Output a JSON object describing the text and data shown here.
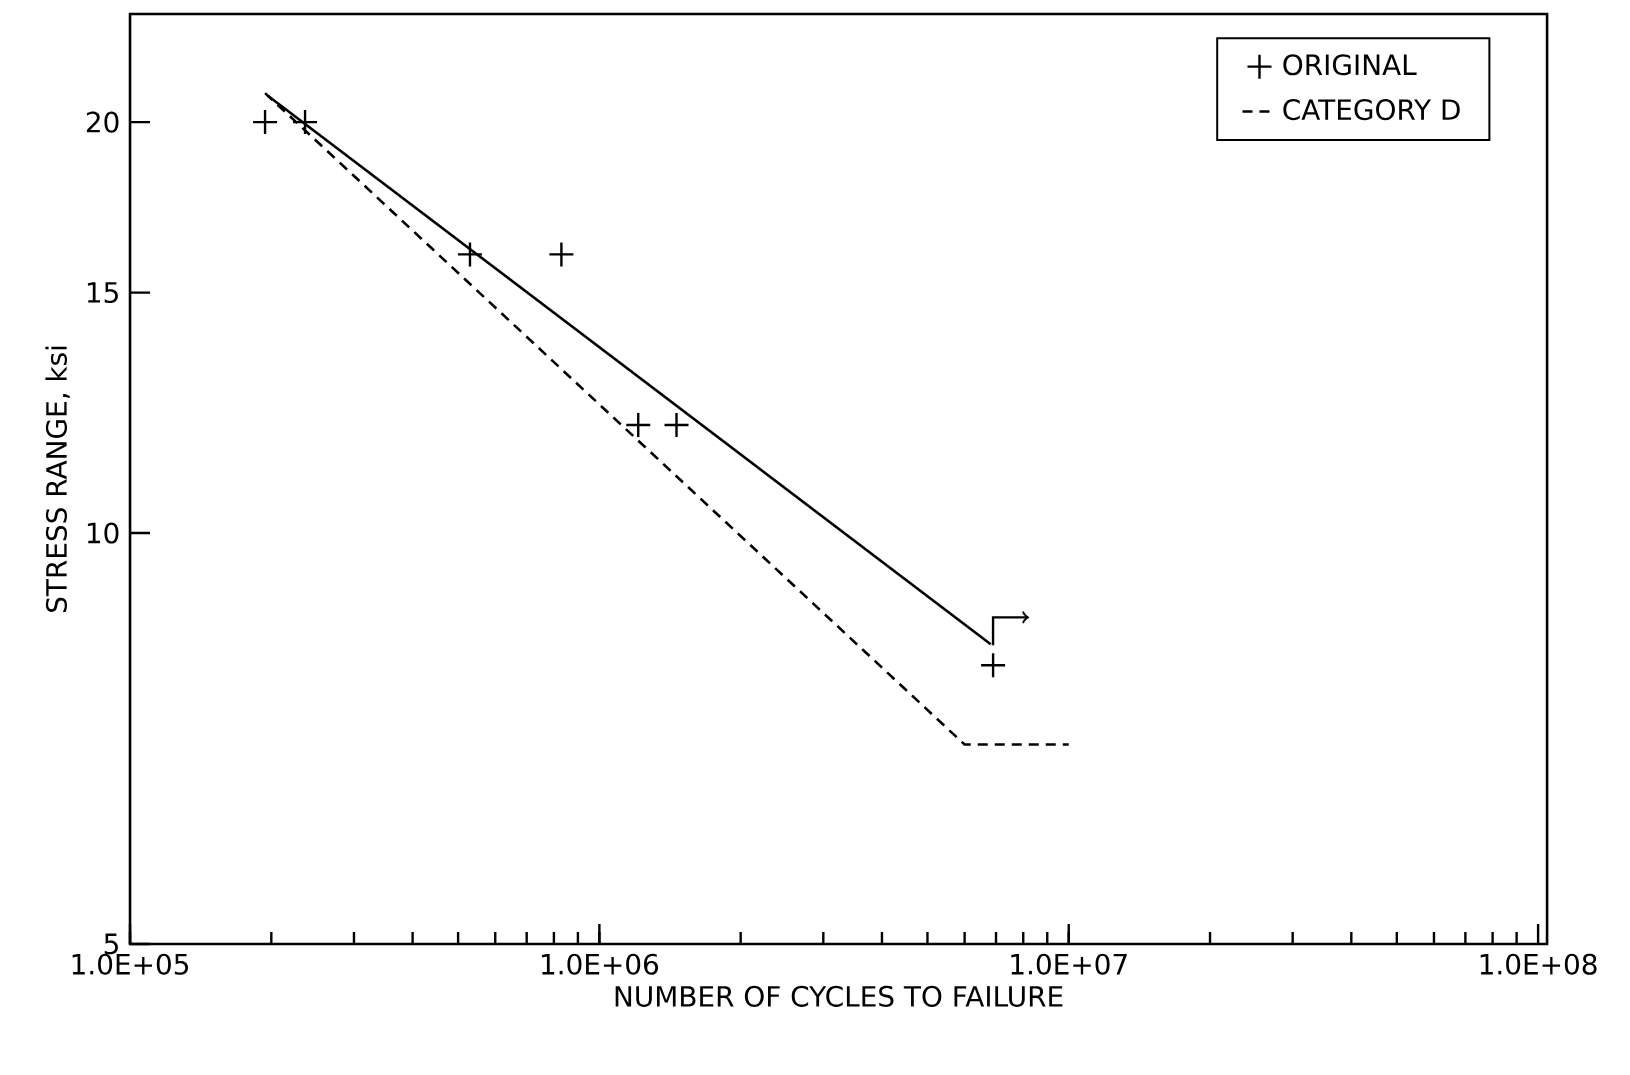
{
  "chart_data": {
    "type": "line",
    "xlabel": "NUMBER OF CYCLES TO FAILURE",
    "ylabel": "STRESS RANGE, ksi",
    "log": "xy",
    "grid": false,
    "legend": "top right",
    "xlim": [
      100000,
      104500000
    ],
    "ylim": [
      5,
      24
    ],
    "xticks": [
      {
        "value": 100000,
        "label": "1.0E+05"
      },
      {
        "value": 1000000,
        "label": "1.0E+06"
      },
      {
        "value": 10000000,
        "label": "1.0E+07"
      },
      {
        "value": 100000000,
        "label": "1.0E+08"
      }
    ],
    "yticks": [
      5,
      10,
      15,
      20
    ],
    "series": [
      {
        "name": "ORIGINAL",
        "type": "scatter",
        "marker": "cross",
        "color": "#000000",
        "x": [
          194000,
          236000,
          530000,
          830000,
          1210000,
          1460000,
          6900000
        ],
        "values": [
          20,
          20,
          16,
          16,
          12,
          12,
          8
        ]
      },
      {
        "name": "CATEGORY D",
        "line_style": "dashed",
        "marker": "none",
        "color": "#000000",
        "x": [
          194000,
          6000000,
          10000000
        ],
        "values": [
          21,
          7,
          7
        ]
      },
      {
        "type": "line",
        "line_style": "solid",
        "marker": "none",
        "color": "#000000",
        "x": [
          197000,
          6820000
        ],
        "values": [
          20.9,
          8.29
        ]
      }
    ]
  }
}
